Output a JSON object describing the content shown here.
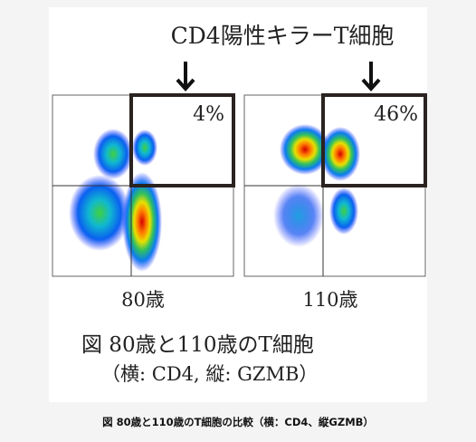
{
  "figure": {
    "header": "CD4陽性キラーT細胞",
    "panels": [
      {
        "label": "80歳",
        "percent": "4%"
      },
      {
        "label": "110歳",
        "percent": "46%"
      }
    ],
    "legend_line1": "図 80歳と110歳のT細胞",
    "legend_line2": "（横: CD4, 縦: GZMB）"
  },
  "caption": "図 80歳と110歳のT細胞の比較（横：CD4、縦GZMB）"
}
